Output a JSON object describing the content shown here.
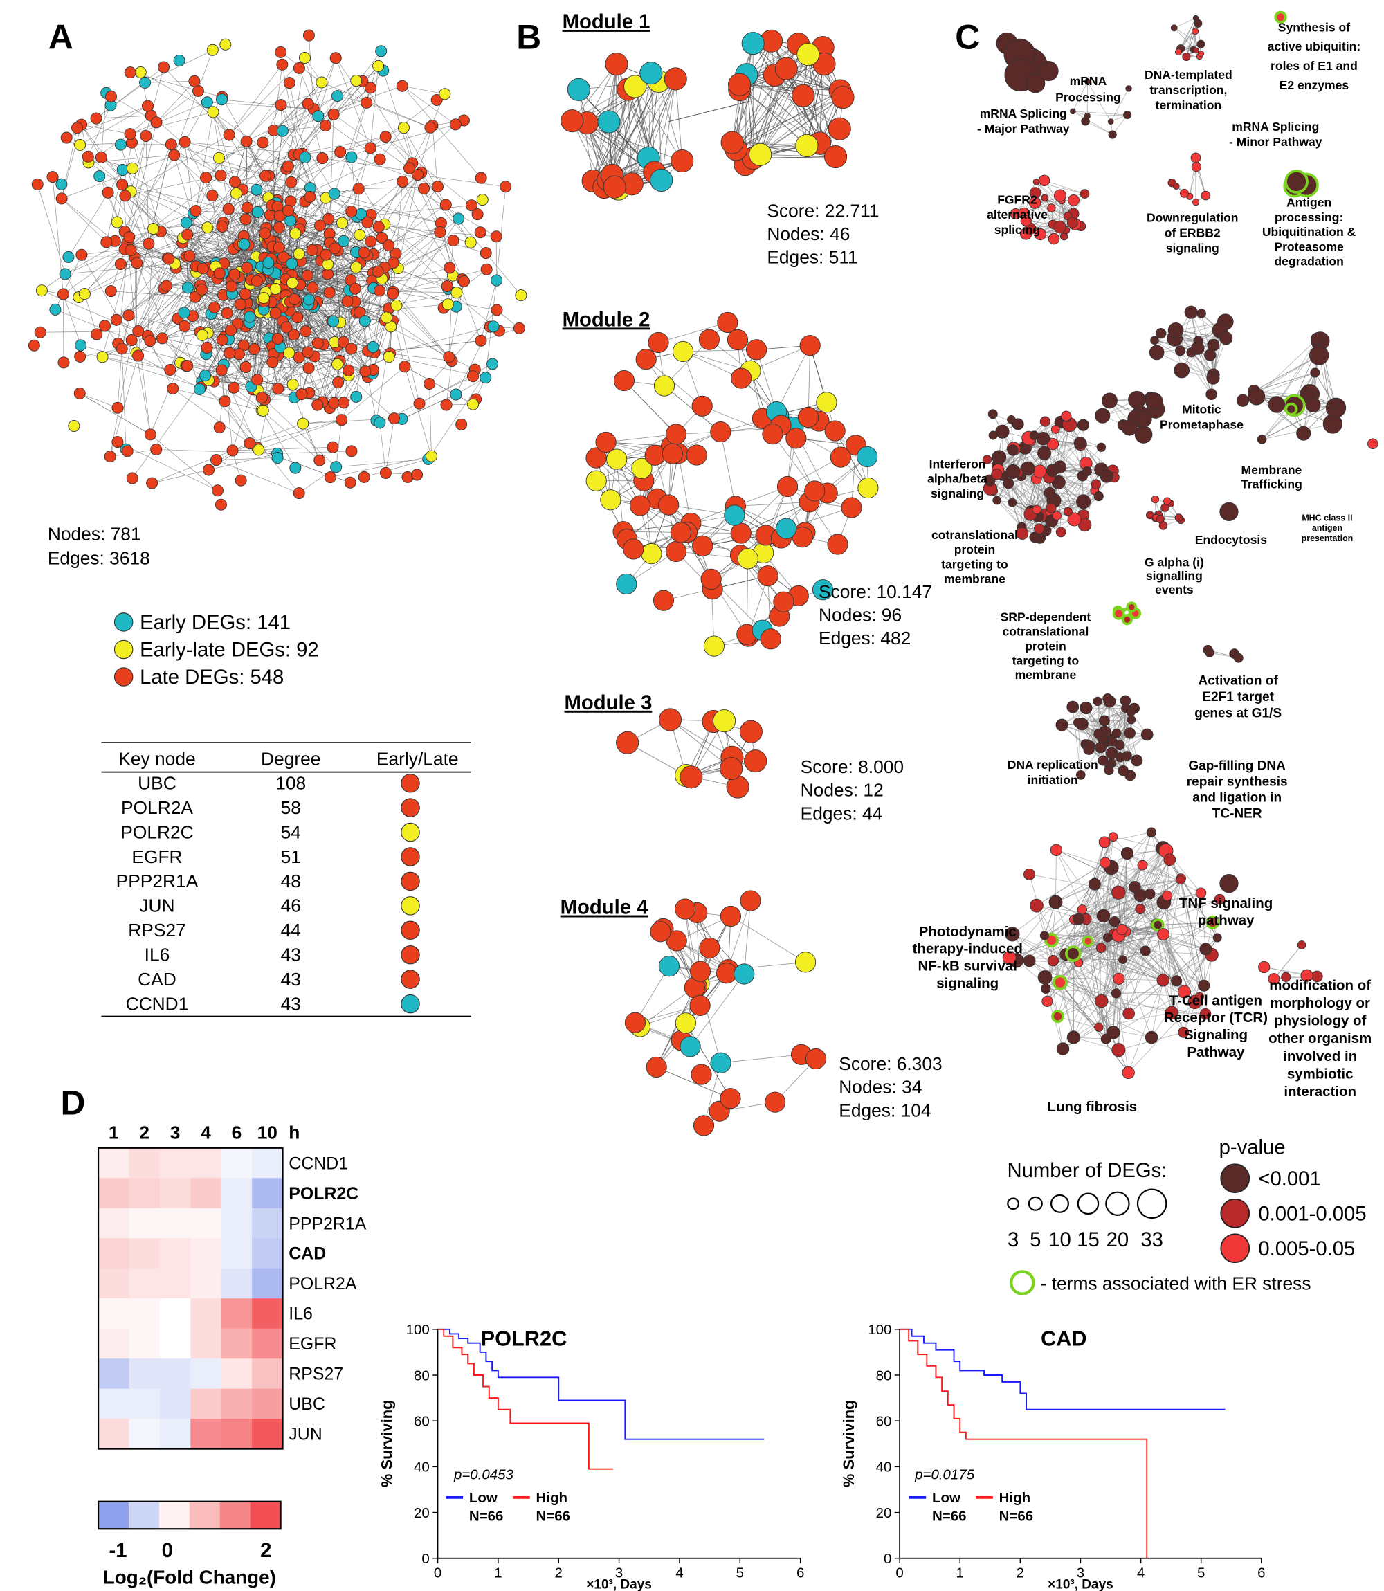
{
  "panel_labels": [
    "A",
    "B",
    "C",
    "D"
  ],
  "panel_a": {
    "nodes_text": "Nodes: 781",
    "edges_text": "Edges: 3618",
    "legend": [
      {
        "text": "Early DEGs: 141",
        "color": "#20b8c4"
      },
      {
        "text": "Early-late DEGs: 92",
        "color": "#f2ee22"
      },
      {
        "text": "Late DEGs: 548",
        "color": "#e8401c"
      }
    ],
    "table": {
      "header": [
        "Key node",
        "Degree",
        "Early/Late"
      ],
      "rows": [
        [
          "UBC",
          108,
          "#e8401c"
        ],
        [
          "POLR2A",
          58,
          "#e8401c"
        ],
        [
          "POLR2C",
          54,
          "#f2ee22"
        ],
        [
          "EGFR",
          51,
          "#e8401c"
        ],
        [
          "PPP2R1A",
          48,
          "#e8401c"
        ],
        [
          "JUN",
          46,
          "#f2ee22"
        ],
        [
          "RPS27",
          44,
          "#e8401c"
        ],
        [
          "IL6",
          43,
          "#e8401c"
        ],
        [
          "CAD",
          43,
          "#e8401c"
        ],
        [
          "CCND1",
          43,
          "#20b8c4"
        ]
      ]
    }
  },
  "panel_b": {
    "modules": [
      {
        "title": "Module 1",
        "stats": [
          "Score: 22.711",
          "Nodes: 46",
          "Edges: 511"
        ]
      },
      {
        "title": "Module 2",
        "stats": [
          "Score: 10.147",
          "Nodes: 96",
          "Edges: 482"
        ]
      },
      {
        "title": "Module 3",
        "stats": [
          "Score: 8.000",
          "Nodes: 12",
          "Edges: 44"
        ]
      },
      {
        "title": "Module 4",
        "stats": [
          "Score: 6.303",
          "Nodes: 34",
          "Edges: 104"
        ]
      }
    ]
  },
  "panel_c": {
    "labels": [
      {
        "lines": [
          "mRNA Splicing",
          "- Major Pathway"
        ],
        "color": "#5c1414"
      },
      {
        "lines": [
          "mRNA",
          "Processing"
        ],
        "color": "#5c1414"
      },
      {
        "lines": [
          "DNA-templated",
          "transcription,",
          "termination"
        ],
        "color": "#5c1414"
      },
      {
        "lines": [
          "Synthesis of",
          "active ubiquitin:",
          "roles of E1 and",
          "E2 enzymes"
        ],
        "color": "#e0251e"
      },
      {
        "lines": [
          "mRNA Splicing",
          "- Minor Pathway"
        ],
        "color": "#5c1414"
      },
      {
        "lines": [
          "FGFR2",
          "alternative",
          "splicing"
        ],
        "color": "#5c1414"
      },
      {
        "lines": [
          "Downregulation",
          "of ERBB2",
          "signaling"
        ],
        "color": "#c01a1a"
      },
      {
        "lines": [
          "Antigen",
          "processing:",
          "Ubiquitination &",
          "Proteasome",
          "degradation"
        ],
        "color": "#5c1414"
      },
      {
        "lines": [
          "Mitotic",
          "Prometaphase"
        ],
        "color": "#5c1414"
      },
      {
        "lines": [
          "Interferon",
          "alpha/beta",
          "signaling"
        ],
        "color": "#5c1414"
      },
      {
        "lines": [
          "Membrane",
          "Trafficking"
        ],
        "color": "#5c1414"
      },
      {
        "lines": [
          "MHC class II",
          "antigen",
          "presentation"
        ],
        "color": "#e0251e"
      },
      {
        "lines": [
          "Endocytosis"
        ],
        "color": "#5c1414"
      },
      {
        "lines": [
          "cotranslational",
          "protein",
          "targeting to",
          "membrane"
        ],
        "color": "#5c1414"
      },
      {
        "lines": [
          "G alpha (i)",
          "signalling",
          "events"
        ],
        "color": "#5c1414"
      },
      {
        "lines": [
          "SRP-dependent",
          "cotranslational",
          "protein",
          "targeting to",
          "membrane"
        ],
        "color": "#5c1414"
      },
      {
        "lines": [
          "Activation of",
          "E2F1 target",
          "genes at G1/S"
        ],
        "color": "#5c1414"
      },
      {
        "lines": [
          "DNA replication",
          "initiation"
        ],
        "color": "#5c1414"
      },
      {
        "lines": [
          "Gap-filling DNA",
          "repair synthesis",
          "and ligation in",
          "TC-NER"
        ],
        "color": "#5c1414"
      },
      {
        "lines": [
          "TNF signaling",
          "pathway"
        ],
        "color": "#5c1414"
      },
      {
        "lines": [
          "Photodynamic",
          "therapy-induced",
          "NF-kB survival",
          "signaling"
        ],
        "color": "#5c1414"
      },
      {
        "lines": [
          "modification of",
          "morphology or",
          "physiology of",
          "other organism",
          "involved in",
          "symbiotic",
          "interaction"
        ],
        "color": "#5c1414"
      },
      {
        "lines": [
          "T-Cell antigen",
          "Receptor (TCR)",
          "Signaling",
          "Pathway"
        ],
        "color": "#5c1414"
      },
      {
        "lines": [
          "Lung fibrosis"
        ],
        "color": "#5c1414"
      }
    ],
    "size_legend": {
      "title": "Number of DEGs:",
      "sizes": [
        3,
        5,
        10,
        15,
        20,
        33
      ]
    },
    "pvalue_legend": {
      "title": "p-value",
      "items": [
        {
          "label": "<0.001",
          "color": "#5a2a28"
        },
        {
          "label": "0.001-0.005",
          "color": "#b82a2a"
        },
        {
          "label": "0.005-0.05",
          "color": "#f03838"
        }
      ]
    },
    "er_stress": {
      "text": "- terms associated with ER stress",
      "color": "#7cd320"
    }
  },
  "chart_data": [
    {
      "type": "heatmap",
      "columns": [
        "1",
        "2",
        "3",
        "4",
        "6",
        "10"
      ],
      "column_unit": "h",
      "rows": [
        "CCND1",
        "POLR2C",
        "PPP2R1A",
        "CAD",
        "POLR2A",
        "IL6",
        "EGFR",
        "RPS27",
        "UBC",
        "JUN"
      ],
      "row_label_colors": [
        "#000000",
        "#e81e1e",
        "#000000",
        "#e81e1e",
        "#000000",
        "#000000",
        "#000000",
        "#000000",
        "#000000",
        "#000000"
      ],
      "row_label_weights": [
        "normal",
        "bold",
        "normal",
        "bold",
        "normal",
        "normal",
        "normal",
        "normal",
        "normal",
        "normal"
      ],
      "values": [
        [
          0.2,
          0.4,
          0.3,
          0.3,
          -0.1,
          -0.2
        ],
        [
          0.6,
          0.5,
          0.4,
          0.6,
          -0.2,
          -0.8
        ],
        [
          0.2,
          0.1,
          0.1,
          0.1,
          -0.2,
          -0.5
        ],
        [
          0.5,
          0.4,
          0.3,
          0.2,
          -0.2,
          -0.6
        ],
        [
          0.4,
          0.3,
          0.3,
          0.2,
          -0.3,
          -0.8
        ],
        [
          0.1,
          0.1,
          0,
          0.4,
          1.2,
          1.8
        ],
        [
          0.2,
          0.1,
          0,
          0.4,
          0.9,
          1.3
        ],
        [
          -0.6,
          -0.3,
          -0.3,
          -0.2,
          0.3,
          0.7
        ],
        [
          -0.2,
          -0.2,
          -0.3,
          0.6,
          0.9,
          1.1
        ],
        [
          0.4,
          -0.1,
          -0.2,
          1.3,
          1.4,
          1.9
        ]
      ],
      "zlim": [
        -1.4,
        2.3
      ],
      "colorbar_ticks": [
        -1,
        0,
        2
      ],
      "colorbar_title": "Log₂(Fold Change)",
      "colors": {
        "low": "#6f86e6",
        "mid": "#ffffff",
        "high": "#ef3438"
      }
    },
    {
      "type": "survival",
      "title": "POLR2C",
      "xlabel": "×10³, Days",
      "ylabel": "% Surviving",
      "annotation": "p=0.0453",
      "xlim": [
        0,
        6
      ],
      "ylim": [
        0,
        100
      ],
      "xticks": [
        0,
        1,
        2,
        3,
        4,
        5,
        6
      ],
      "yticks": [
        0,
        20,
        40,
        60,
        80,
        100
      ],
      "series": [
        {
          "name": "Low",
          "n_label": "N=66",
          "color": "#1a1aff",
          "x": [
            0,
            0.2,
            0.35,
            0.5,
            0.7,
            0.8,
            0.9,
            1.0,
            2.0,
            3.1,
            5.4
          ],
          "values": [
            100,
            98,
            96,
            94,
            90,
            86,
            82,
            79,
            69,
            52,
            52
          ]
        },
        {
          "name": "High",
          "n_label": "N=66",
          "color": "#ff1a1a",
          "x": [
            0,
            0.1,
            0.25,
            0.4,
            0.5,
            0.6,
            0.75,
            0.85,
            1.0,
            1.2,
            2.5,
            2.9
          ],
          "values": [
            100,
            97,
            92,
            89,
            85,
            80,
            75,
            70,
            65,
            59,
            39,
            39
          ]
        }
      ]
    },
    {
      "type": "survival",
      "title": "CAD",
      "xlabel": "×10³, Days",
      "ylabel": "% Surviving",
      "annotation": "p=0.0175",
      "xlim": [
        0,
        6
      ],
      "ylim": [
        0,
        100
      ],
      "xticks": [
        0,
        1,
        2,
        3,
        4,
        5,
        6
      ],
      "yticks": [
        0,
        20,
        40,
        60,
        80,
        100
      ],
      "series": [
        {
          "name": "Low",
          "n_label": "N=66",
          "color": "#1a1aff",
          "x": [
            0,
            0.2,
            0.4,
            0.6,
            0.9,
            1.0,
            1.4,
            1.7,
            2.0,
            2.1,
            5.4
          ],
          "values": [
            100,
            97,
            94,
            91,
            86,
            82,
            80,
            77,
            72,
            65,
            65
          ]
        },
        {
          "name": "High",
          "n_label": "N=66",
          "color": "#ff1a1a",
          "x": [
            0,
            0.15,
            0.3,
            0.45,
            0.6,
            0.7,
            0.8,
            0.9,
            1.0,
            1.1,
            4.1
          ],
          "values": [
            100,
            95,
            89,
            84,
            79,
            73,
            67,
            61,
            55,
            52,
            0
          ]
        }
      ]
    }
  ]
}
